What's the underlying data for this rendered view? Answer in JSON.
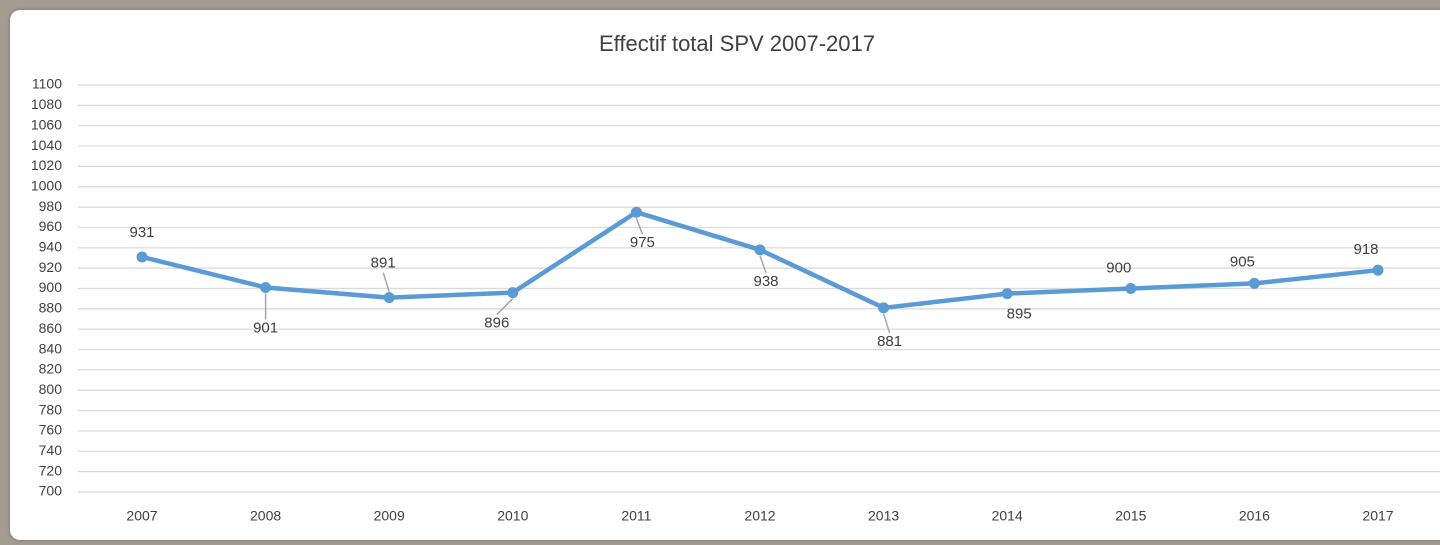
{
  "chart_data": {
    "type": "line",
    "title": "Effectif total SPV 2007-2017",
    "categories": [
      "2007",
      "2008",
      "2009",
      "2010",
      "2011",
      "2012",
      "2013",
      "2014",
      "2015",
      "2016",
      "2017"
    ],
    "series": [
      {
        "name": "Effectif total SPV",
        "color": "#5b9bd5",
        "values": [
          931,
          901,
          891,
          896,
          975,
          938,
          881,
          895,
          900,
          905,
          918
        ]
      }
    ],
    "ylim": [
      700,
      1100
    ],
    "yticks": [
      700,
      720,
      740,
      760,
      780,
      800,
      820,
      840,
      860,
      880,
      900,
      920,
      940,
      960,
      980,
      1000,
      1020,
      1040,
      1060,
      1080,
      1100
    ],
    "grid": true
  }
}
